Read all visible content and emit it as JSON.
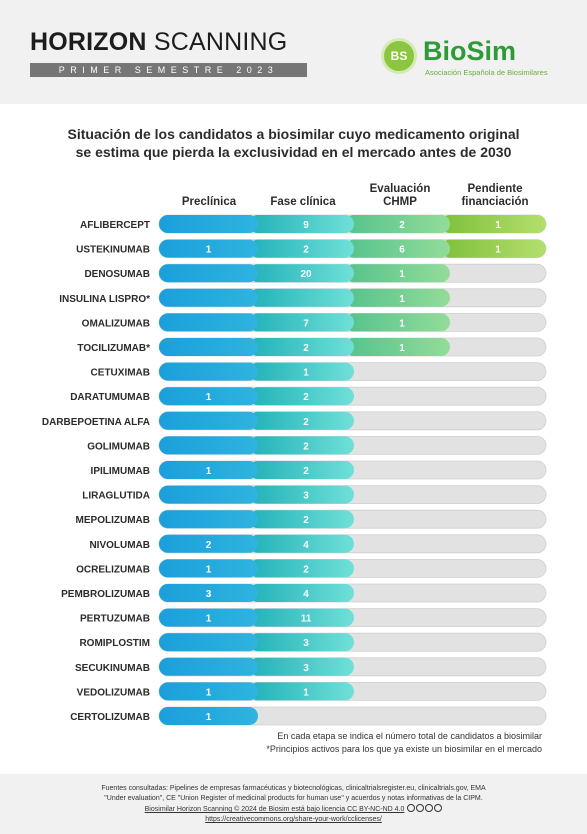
{
  "header": {
    "title_bold": "HORIZON",
    "title_light": "SCANNING",
    "period": "PRIMER SEMESTRE 2023"
  },
  "logo": {
    "badge": "BS",
    "name": "BioSim",
    "tagline": "Asociación Española de Biosimilares",
    "icon": "biosim-logo-icon"
  },
  "heading": {
    "line1": "Situación de los candidatos a biosimilar cuyo medicamento original",
    "line2": "se estima que pierda la exclusividad en el mercado antes de 2030"
  },
  "columns": [
    {
      "line1": "Preclínica",
      "line2": ""
    },
    {
      "line1": "Fase clínica",
      "line2": ""
    },
    {
      "line1": "Evaluación",
      "line2": "CHMP"
    },
    {
      "line1": "Pendiente",
      "line2": "financiación"
    }
  ],
  "chart_data": {
    "type": "table",
    "stages": [
      "Preclínica",
      "Fase clínica",
      "Evaluación CHMP",
      "Pendiente financiación"
    ],
    "rows": [
      {
        "name": "AFLIBERCEPT",
        "values": [
          null,
          9,
          2,
          1
        ]
      },
      {
        "name": "USTEKINUMAB",
        "values": [
          1,
          2,
          6,
          1
        ]
      },
      {
        "name": "DENOSUMAB",
        "values": [
          null,
          20,
          1,
          null
        ]
      },
      {
        "name": "INSULINA LISPRO*",
        "values": [
          null,
          null,
          1,
          null
        ]
      },
      {
        "name": "OMALIZUMAB",
        "values": [
          null,
          7,
          1,
          null
        ]
      },
      {
        "name": "TOCILIZUMAB*",
        "values": [
          null,
          2,
          1,
          null
        ]
      },
      {
        "name": "CETUXIMAB",
        "values": [
          null,
          1,
          null,
          null
        ]
      },
      {
        "name": "DARATUMUMAB",
        "values": [
          1,
          2,
          null,
          null
        ]
      },
      {
        "name": "DARBEPOETINA ALFA",
        "values": [
          null,
          2,
          null,
          null
        ]
      },
      {
        "name": "GOLIMUMAB",
        "values": [
          null,
          2,
          null,
          null
        ]
      },
      {
        "name": "IPILIMUMAB",
        "values": [
          1,
          2,
          null,
          null
        ]
      },
      {
        "name": "LIRAGLUTIDA",
        "values": [
          null,
          3,
          null,
          null
        ]
      },
      {
        "name": "MEPOLIZUMAB",
        "values": [
          null,
          2,
          null,
          null
        ]
      },
      {
        "name": "NIVOLUMAB",
        "values": [
          2,
          4,
          null,
          null
        ]
      },
      {
        "name": "OCRELIZUMAB",
        "values": [
          1,
          2,
          null,
          null
        ]
      },
      {
        "name": "PEMBROLIZUMAB",
        "values": [
          3,
          4,
          null,
          null
        ]
      },
      {
        "name": "PERTUZUMAB",
        "values": [
          1,
          11,
          null,
          null
        ]
      },
      {
        "name": "ROMIPLOSTIM",
        "values": [
          null,
          3,
          null,
          null
        ]
      },
      {
        "name": "SECUKINUMAB",
        "values": [
          null,
          3,
          null,
          null
        ]
      },
      {
        "name": "VEDOLIZUMAB",
        "values": [
          1,
          1,
          null,
          null
        ]
      },
      {
        "name": "CERTOLIZUMAB",
        "values": [
          1,
          null,
          null,
          null
        ]
      }
    ],
    "reached_stage": [
      4,
      4,
      3,
      3,
      3,
      3,
      2,
      2,
      2,
      2,
      2,
      2,
      2,
      2,
      2,
      2,
      2,
      2,
      2,
      2,
      1
    ],
    "colors": {
      "preclinica": "#1aa3dc",
      "fase_clinica": "#2bc3bc",
      "evaluacion_chmp": "#6ccc80",
      "pendiente_financiacion": "#8bc53f",
      "empty_track": "#e3e3e3"
    }
  },
  "notes": {
    "line1": "En cada etapa se indica el número total de candidatos a biosimilar",
    "line2": "*Principios activos para los que ya existe un biosimilar en el mercado"
  },
  "footer": {
    "line1": "Fuentes consultadas: Pipelines de empresas farmacéuticas y biotecnológicas, clinicaltrialsregister.eu, clinicaltrials.gov, EMA",
    "line2": "\"Under evaluation\", CE \"Union Register of medicinal products for human use\" y acuerdos y notas informativas de la CIPM.",
    "line3": "Biosimilar Horizon Scanning © 2024 de Biosim está bajo licencia CC BY-NC-ND 4.0",
    "line4": "https://creativecommons.org/share-your-work/cclicenses/"
  }
}
